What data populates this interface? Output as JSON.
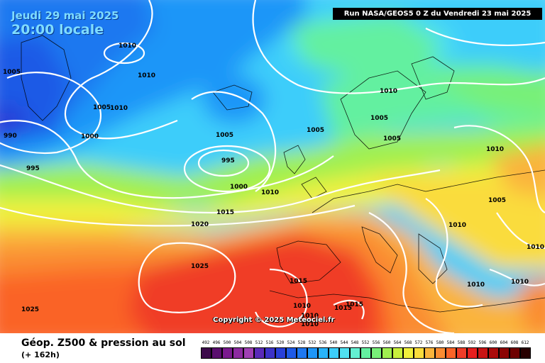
{
  "header": {
    "date": "Jeudi 29 mai 2025",
    "local_time": "20:00 locale",
    "run": "Run NASA/GEOS5 0 Z du Vendredi 23 mai 2025",
    "copyright": "Copyright © 2025 Meteociel.fr"
  },
  "footer": {
    "title": "Géop. Z500 & pression au sol",
    "subtitle": "(+ 162h)"
  },
  "legend": {
    "values": [
      "492",
      "496",
      "500",
      "504",
      "508",
      "512",
      "516",
      "520",
      "524",
      "528",
      "532",
      "536",
      "540",
      "544",
      "548",
      "552",
      "556",
      "560",
      "564",
      "568",
      "572",
      "576",
      "580",
      "584",
      "588",
      "592",
      "596",
      "600",
      "604",
      "608",
      "612"
    ],
    "colors": [
      "#3c0a4a",
      "#5a0f6e",
      "#7a1a8e",
      "#8c2aa0",
      "#a040b4",
      "#5a2ab8",
      "#3c32c8",
      "#2840d8",
      "#1e5ae6",
      "#1e78f0",
      "#1e96f8",
      "#28b4fa",
      "#3ccdfa",
      "#50e0f0",
      "#64f0d2",
      "#64f0a0",
      "#78f078",
      "#a0f050",
      "#c8f03c",
      "#f0f03c",
      "#fadc3c",
      "#fab43c",
      "#fa8c32",
      "#fa6428",
      "#f03c28",
      "#e61e1e",
      "#c81414",
      "#aa0a0a",
      "#8c0505",
      "#6e0000",
      "#280000"
    ]
  },
  "map_labels": {
    "isobars": [
      "1010",
      "1005",
      "1010",
      "1005",
      "1000",
      "990",
      "995",
      "1005",
      "995",
      "1000",
      "1010",
      "1015",
      "1020",
      "1025",
      "1025",
      "1010",
      "1005",
      "1005",
      "1005",
      "1010",
      "1010",
      "1005",
      "1010",
      "1010",
      "1015",
      "1010",
      "1015",
      "1015",
      "1010",
      "1010",
      "1010",
      "1010"
    ]
  },
  "colors": {
    "contour": "#ffffff",
    "run_bar_bg": "#000000"
  }
}
